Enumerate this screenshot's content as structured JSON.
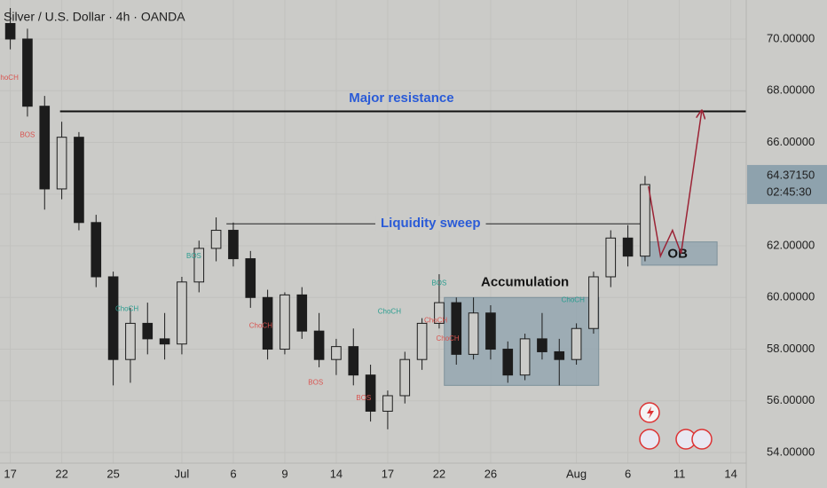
{
  "chart_data": {
    "type": "candlestick",
    "title": "Silver / U.S. Dollar · 4h · OANDA",
    "color": "#1c1c1c",
    "candles": {
      "x": [
        0,
        1,
        2,
        3,
        4,
        5,
        6,
        7,
        8,
        9,
        10,
        11,
        12,
        13,
        14,
        15,
        16,
        17,
        18,
        19,
        20,
        21,
        22,
        23,
        24,
        25,
        26,
        27,
        28,
        29,
        30,
        31,
        32,
        33,
        34,
        35,
        36,
        37
      ],
      "open": [
        70.6,
        70.0,
        67.4,
        64.2,
        66.2,
        62.9,
        60.8,
        57.6,
        59.0,
        58.4,
        58.2,
        60.6,
        61.9,
        62.6,
        61.5,
        60.0,
        58.0,
        60.1,
        58.7,
        57.6,
        58.1,
        57.0,
        55.6,
        56.2,
        57.6,
        59.0,
        59.8,
        57.8,
        59.4,
        58.0,
        57.0,
        58.4,
        57.9,
        57.6,
        58.8,
        60.8,
        62.3,
        61.6
      ],
      "high": [
        71.2,
        70.4,
        67.8,
        66.8,
        66.4,
        63.2,
        61.0,
        59.6,
        59.8,
        59.4,
        60.8,
        62.2,
        63.1,
        62.9,
        61.8,
        60.3,
        60.2,
        60.4,
        59.4,
        58.4,
        58.8,
        57.4,
        56.4,
        57.9,
        59.2,
        60.9,
        60.0,
        60.0,
        59.7,
        58.3,
        58.6,
        59.4,
        58.4,
        59.0,
        61.0,
        62.6,
        62.8,
        64.7
      ],
      "low": [
        69.6,
        67.0,
        63.4,
        63.8,
        62.6,
        60.4,
        56.6,
        56.7,
        57.8,
        57.6,
        57.8,
        60.2,
        61.4,
        61.2,
        59.6,
        57.6,
        57.8,
        58.4,
        57.3,
        57.0,
        56.6,
        55.2,
        54.9,
        55.9,
        57.2,
        58.8,
        57.4,
        57.6,
        57.6,
        56.7,
        56.8,
        57.6,
        56.6,
        57.4,
        58.6,
        60.4,
        61.2,
        61.4
      ],
      "close": [
        70.0,
        67.4,
        64.2,
        66.2,
        62.9,
        60.8,
        57.6,
        59.0,
        58.4,
        58.2,
        60.6,
        61.9,
        62.6,
        61.5,
        60.0,
        58.0,
        60.1,
        58.7,
        57.6,
        58.1,
        57.0,
        55.6,
        56.2,
        57.6,
        59.0,
        59.8,
        57.8,
        59.4,
        58.0,
        57.0,
        58.4,
        57.9,
        57.6,
        58.8,
        60.8,
        62.3,
        61.6,
        64.37
      ]
    },
    "xlim": [
      -0.6,
      42.9
    ],
    "xticks": [
      {
        "value": 0,
        "label": "17"
      },
      {
        "value": 3,
        "label": "22"
      },
      {
        "value": 6,
        "label": "25"
      },
      {
        "value": 10,
        "label": "Jul"
      },
      {
        "value": 13,
        "label": "6"
      },
      {
        "value": 16,
        "label": "9"
      },
      {
        "value": 19,
        "label": "14"
      },
      {
        "value": 22,
        "label": "17"
      },
      {
        "value": 25,
        "label": "22"
      },
      {
        "value": 28,
        "label": "26"
      },
      {
        "value": 33,
        "label": "Aug"
      },
      {
        "value": 36,
        "label": "6"
      },
      {
        "value": 39,
        "label": "11"
      },
      {
        "value": 42,
        "label": "14"
      }
    ],
    "ylim": [
      53.59,
      71.51
    ],
    "yticks": [
      {
        "value": 54,
        "label": "54.00000"
      },
      {
        "value": 56,
        "label": "56.00000"
      },
      {
        "value": 58,
        "label": "58.00000"
      },
      {
        "value": 60,
        "label": "60.00000"
      },
      {
        "value": 62,
        "label": "62.00000"
      },
      {
        "value": 64,
        "label": "64.00000"
      },
      {
        "value": 66,
        "label": "66.00000"
      },
      {
        "value": 68,
        "label": "68.00000"
      },
      {
        "value": 70,
        "label": "70.00000"
      }
    ],
    "grid": true,
    "price_label": {
      "value": 64.3715,
      "label": "64.37150",
      "countdown": "02:45:30"
    },
    "levels": [
      {
        "name": "Major resistance",
        "value": 67.2,
        "x": [
          2.9,
          42.9
        ],
        "color": "#111111",
        "width": 2,
        "text_x": 22.8,
        "text_y": 67.7,
        "text_color": "#2a5bd7"
      },
      {
        "name": "Liquidity sweep",
        "value": 62.85,
        "x": [
          12.6,
          37.0
        ],
        "color": "#222222",
        "width": 1,
        "text_x": 24.5,
        "text_y": 62.85,
        "text_color": "#2a5bd7"
      }
    ],
    "zones": [
      {
        "name": "Accumulation",
        "y": [
          56.6,
          60.0
        ],
        "x": [
          25.3,
          34.3
        ],
        "text_x": 30.0,
        "text_y": 60.57
      },
      {
        "name": "OB",
        "y": [
          61.25,
          62.15
        ],
        "x": [
          36.8,
          41.2
        ],
        "text_x": 38.9,
        "text_y": 61.67
      }
    ],
    "zone_color": "#8ea2ad",
    "projection": {
      "x": [
        37.2,
        37.9,
        38.6,
        39.1,
        40.3
      ],
      "y": [
        64.3,
        61.6,
        62.6,
        61.7,
        67.2
      ],
      "color": "#9b2335"
    },
    "markers": [
      {
        "label": "ChoCH",
        "x": -0.2,
        "y": 68.5,
        "color": "#d9534f"
      },
      {
        "label": "BOS",
        "x": 1.0,
        "y": 66.27,
        "color": "#d9534f"
      },
      {
        "label": "ChoCH",
        "x": 6.8,
        "y": 59.55,
        "color": "#2a9d8f"
      },
      {
        "label": "BOS",
        "x": 10.7,
        "y": 61.6,
        "color": "#2a9d8f"
      },
      {
        "label": "ChoCH",
        "x": 14.6,
        "y": 58.9,
        "color": "#d9534f"
      },
      {
        "label": "BOS",
        "x": 17.8,
        "y": 56.7,
        "color": "#d9534f"
      },
      {
        "label": "BOS",
        "x": 20.6,
        "y": 56.1,
        "color": "#d9534f"
      },
      {
        "label": "ChoCH",
        "x": 22.1,
        "y": 59.44,
        "color": "#2a9d8f"
      },
      {
        "label": "BOS",
        "x": 25.0,
        "y": 60.54,
        "color": "#2a9d8f"
      },
      {
        "label": "ChoCH",
        "x": 24.8,
        "y": 59.1,
        "color": "#d9534f"
      },
      {
        "label": "ChoCH",
        "x": 25.5,
        "y": 58.4,
        "color": "#d9534f"
      },
      {
        "label": "ChoCH",
        "x": 32.8,
        "y": 59.9,
        "color": "#2a9d8f"
      }
    ]
  }
}
